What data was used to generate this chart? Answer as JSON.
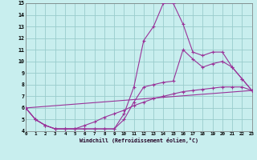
{
  "bg_color": "#c8eeee",
  "grid_color": "#99cccc",
  "line_color": "#993399",
  "xlim": [
    0,
    23
  ],
  "ylim": [
    4,
    15
  ],
  "xticks": [
    0,
    1,
    2,
    3,
    4,
    5,
    6,
    7,
    8,
    9,
    10,
    11,
    12,
    13,
    14,
    15,
    16,
    17,
    18,
    19,
    20,
    21,
    22,
    23
  ],
  "yticks": [
    4,
    5,
    6,
    7,
    8,
    9,
    10,
    11,
    12,
    13,
    14,
    15
  ],
  "xlabel": "Windchill (Refroidissement éolien,°C)",
  "lines": [
    {
      "x": [
        0,
        1,
        2,
        3,
        4,
        5,
        6,
        7,
        8,
        9,
        10,
        11,
        12,
        13,
        14,
        15,
        16,
        17,
        18,
        19,
        20,
        21,
        22,
        23
      ],
      "y": [
        6.0,
        5.0,
        4.5,
        4.2,
        4.2,
        4.2,
        4.2,
        4.2,
        4.2,
        4.2,
        5.5,
        7.8,
        11.8,
        13.0,
        15.0,
        15.0,
        13.2,
        10.8,
        10.5,
        10.8,
        10.8,
        9.5,
        8.5,
        7.5
      ]
    },
    {
      "x": [
        0,
        1,
        2,
        3,
        4,
        5,
        6,
        7,
        8,
        9,
        10,
        11,
        12,
        13,
        14,
        15,
        16,
        17,
        18,
        19,
        20,
        21,
        22,
        23
      ],
      "y": [
        6.0,
        5.0,
        4.5,
        4.2,
        4.2,
        4.2,
        4.2,
        4.2,
        4.2,
        4.2,
        5.0,
        6.5,
        7.8,
        8.0,
        8.2,
        8.3,
        11.0,
        10.2,
        9.5,
        9.8,
        10.0,
        9.5,
        8.5,
        7.5
      ]
    },
    {
      "x": [
        0,
        1,
        2,
        3,
        4,
        5,
        6,
        7,
        8,
        9,
        10,
        11,
        12,
        13,
        14,
        15,
        16,
        17,
        18,
        19,
        20,
        21,
        22,
        23
      ],
      "y": [
        6.0,
        5.0,
        4.5,
        4.2,
        4.2,
        4.2,
        4.5,
        4.8,
        5.2,
        5.5,
        5.8,
        6.2,
        6.5,
        6.8,
        7.0,
        7.2,
        7.4,
        7.5,
        7.6,
        7.7,
        7.8,
        7.8,
        7.8,
        7.5
      ]
    },
    {
      "x": [
        0,
        23
      ],
      "y": [
        6.0,
        7.5
      ]
    }
  ]
}
